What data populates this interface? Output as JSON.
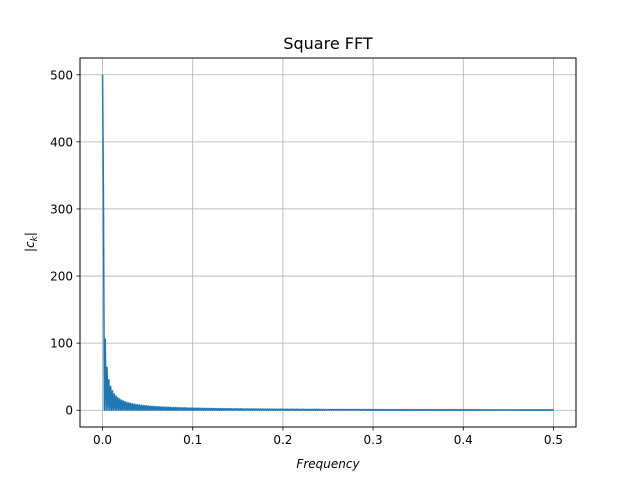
{
  "chart_data": {
    "type": "line",
    "title": "Square FFT",
    "xlabel": "Frequency",
    "ylabel": "|c_k|",
    "ylabel_parts": {
      "prefix": "|",
      "var": "c",
      "sub": "k",
      "suffix": "|"
    },
    "xlim": [
      -0.025,
      0.525
    ],
    "ylim": [
      -25,
      525
    ],
    "xticks": [
      0.0,
      0.1,
      0.2,
      0.3,
      0.4,
      0.5
    ],
    "xtick_labels": [
      "0.0",
      "0.1",
      "0.2",
      "0.3",
      "0.4",
      "0.5"
    ],
    "yticks": [
      0,
      100,
      200,
      300,
      400,
      500
    ],
    "ytick_labels": [
      "0",
      "100",
      "200",
      "300",
      "400",
      "500"
    ],
    "grid": true,
    "series": [
      {
        "color": "#1f77b4",
        "pattern": "alternating: odd harmonics ~ 318/k, even harmonics ~ 0",
        "points": [
          [
            0.0,
            500
          ],
          [
            0.001,
            318
          ],
          [
            0.003,
            106
          ],
          [
            0.005,
            64
          ],
          [
            0.007,
            45
          ],
          [
            0.009,
            35
          ],
          [
            0.011,
            29
          ],
          [
            0.015,
            21
          ],
          [
            0.02,
            16
          ],
          [
            0.03,
            10.6
          ],
          [
            0.05,
            6.4
          ],
          [
            0.08,
            4.0
          ],
          [
            0.1,
            3.2
          ],
          [
            0.15,
            2.1
          ],
          [
            0.2,
            1.6
          ],
          [
            0.3,
            1.1
          ],
          [
            0.4,
            0.8
          ],
          [
            0.5,
            0.6
          ]
        ]
      }
    ]
  }
}
